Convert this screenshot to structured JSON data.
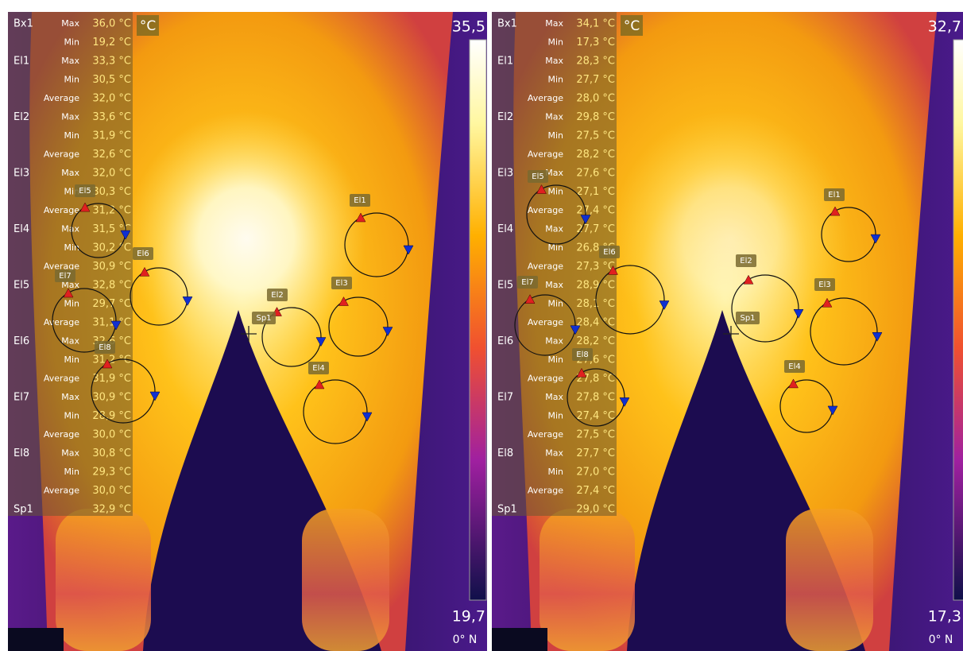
{
  "panels": [
    {
      "unit": "°C",
      "scale_max": "35,5",
      "scale_min": "19,7",
      "compass": "0° N",
      "measurements": [
        {
          "label": "Bx1",
          "rows": [
            {
              "stat": "Max",
              "value": "36,0 °C"
            },
            {
              "stat": "Min",
              "value": "19,2 °C"
            }
          ]
        },
        {
          "label": "El1",
          "rows": [
            {
              "stat": "Max",
              "value": "33,3 °C"
            },
            {
              "stat": "Min",
              "value": "30,5 °C"
            },
            {
              "stat": "Average",
              "value": "32,0 °C"
            }
          ]
        },
        {
          "label": "El2",
          "rows": [
            {
              "stat": "Max",
              "value": "33,6 °C"
            },
            {
              "stat": "Min",
              "value": "31,9 °C"
            },
            {
              "stat": "Average",
              "value": "32,6 °C"
            }
          ]
        },
        {
          "label": "El3",
          "rows": [
            {
              "stat": "Max",
              "value": "32,0 °C"
            },
            {
              "stat": "Min",
              "value": "30,3 °C"
            },
            {
              "stat": "Average",
              "value": "31,2 °C"
            }
          ]
        },
        {
          "label": "El4",
          "rows": [
            {
              "stat": "Max",
              "value": "31,5 °C"
            },
            {
              "stat": "Min",
              "value": "30,2 °C"
            },
            {
              "stat": "Average",
              "value": "30,9 °C"
            }
          ]
        },
        {
          "label": "El5",
          "rows": [
            {
              "stat": "Max",
              "value": "32,8 °C"
            },
            {
              "stat": "Min",
              "value": "29,7 °C"
            },
            {
              "stat": "Average",
              "value": "31,1 °C"
            }
          ]
        },
        {
          "label": "El6",
          "rows": [
            {
              "stat": "Max",
              "value": "32,6 °C"
            },
            {
              "stat": "Min",
              "value": "31,2 °C"
            },
            {
              "stat": "Average",
              "value": "31,9 °C"
            }
          ]
        },
        {
          "label": "El7",
          "rows": [
            {
              "stat": "Max",
              "value": "30,9 °C"
            },
            {
              "stat": "Min",
              "value": "28,9 °C"
            },
            {
              "stat": "Average",
              "value": "30,0 °C"
            }
          ]
        },
        {
          "label": "El8",
          "rows": [
            {
              "stat": "Max",
              "value": "30,8 °C"
            },
            {
              "stat": "Min",
              "value": "29,3 °C"
            },
            {
              "stat": "Average",
              "value": "30,0 °C"
            }
          ]
        },
        {
          "label": "Sp1",
          "rows": [
            {
              "value": "32,9 °C"
            }
          ]
        }
      ],
      "markers": [
        "El1",
        "El2",
        "El3",
        "El4",
        "El5",
        "El6",
        "El7",
        "El8",
        "Sp1"
      ]
    },
    {
      "unit": "°C",
      "scale_max": "32,7",
      "scale_min": "17,3",
      "compass": "0° N",
      "measurements": [
        {
          "label": "Bx1",
          "rows": [
            {
              "stat": "Max",
              "value": "34,1 °C"
            },
            {
              "stat": "Min",
              "value": "17,3 °C"
            }
          ]
        },
        {
          "label": "El1",
          "rows": [
            {
              "stat": "Max",
              "value": "28,3 °C"
            },
            {
              "stat": "Min",
              "value": "27,7 °C"
            },
            {
              "stat": "Average",
              "value": "28,0 °C"
            }
          ]
        },
        {
          "label": "El2",
          "rows": [
            {
              "stat": "Max",
              "value": "29,8 °C"
            },
            {
              "stat": "Min",
              "value": "27,5 °C"
            },
            {
              "stat": "Average",
              "value": "28,2 °C"
            }
          ]
        },
        {
          "label": "El3",
          "rows": [
            {
              "stat": "Max",
              "value": "27,6 °C"
            },
            {
              "stat": "Min",
              "value": "27,1 °C"
            },
            {
              "stat": "Average",
              "value": "27,4 °C"
            }
          ]
        },
        {
          "label": "El4",
          "rows": [
            {
              "stat": "Max",
              "value": "27,7 °C"
            },
            {
              "stat": "Min",
              "value": "26,8 °C"
            },
            {
              "stat": "Average",
              "value": "27,3 °C"
            }
          ]
        },
        {
          "label": "El5",
          "rows": [
            {
              "stat": "Max",
              "value": "28,9 °C"
            },
            {
              "stat": "Min",
              "value": "28,1 °C"
            },
            {
              "stat": "Average",
              "value": "28,4 °C"
            }
          ]
        },
        {
          "label": "El6",
          "rows": [
            {
              "stat": "Max",
              "value": "28,2 °C"
            },
            {
              "stat": "Min",
              "value": "27,6 °C"
            },
            {
              "stat": "Average",
              "value": "27,8 °C"
            }
          ]
        },
        {
          "label": "El7",
          "rows": [
            {
              "stat": "Max",
              "value": "27,8 °C"
            },
            {
              "stat": "Min",
              "value": "27,4 °C"
            },
            {
              "stat": "Average",
              "value": "27,5 °C"
            }
          ]
        },
        {
          "label": "El8",
          "rows": [
            {
              "stat": "Max",
              "value": "27,7 °C"
            },
            {
              "stat": "Min",
              "value": "27,0 °C"
            },
            {
              "stat": "Average",
              "value": "27,4 °C"
            }
          ]
        },
        {
          "label": "Sp1",
          "rows": [
            {
              "value": "29,0 °C"
            }
          ]
        }
      ],
      "markers": [
        "El1",
        "El2",
        "El3",
        "El4",
        "El5",
        "El6",
        "El7",
        "El8",
        "Sp1"
      ]
    }
  ]
}
